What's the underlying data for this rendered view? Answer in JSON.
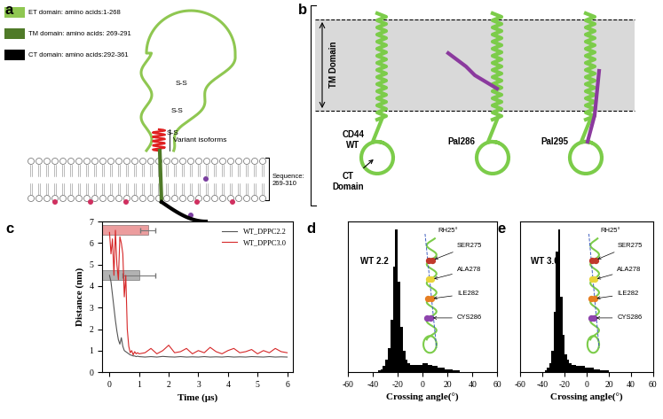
{
  "panel_labels": [
    "a",
    "b",
    "c",
    "d",
    "e"
  ],
  "diagram_a": {
    "legend": [
      {
        "label": "ET domain: amino acids:1-268",
        "color": "#8fc751"
      },
      {
        "label": "TM domain: amino acids: 269-291",
        "color": "#4f7a28"
      },
      {
        "label": "CT domain: amino acids:292-361",
        "color": "#000000"
      }
    ],
    "disulfide": [
      "S-S",
      "S-S",
      "S-S"
    ],
    "variant": "Variant isoforms",
    "sequence": "Sequence:\n269-310"
  },
  "diagram_b": {
    "region": "TM Domain",
    "variants": [
      "CD44\nWT",
      "Pal286",
      "Pal295"
    ],
    "ct_label": "CT\nDomain"
  },
  "chart_data": [
    {
      "type": "line",
      "xlabel": "Time (μs)",
      "ylabel": "Distance (nm)",
      "xlim": [
        -0.25,
        6.2
      ],
      "xticks": [
        0,
        1,
        2,
        3,
        4,
        5,
        6
      ],
      "ylim": [
        0,
        7
      ],
      "yticks": [
        0,
        1,
        2,
        3,
        4,
        5,
        6,
        7
      ],
      "legend": "upper right",
      "x": [
        0,
        0.05,
        0.1,
        0.15,
        0.2,
        0.25,
        0.3,
        0.35,
        0.4,
        0.45,
        0.5,
        0.55,
        0.6,
        0.65,
        0.7,
        0.75,
        0.8,
        0.85,
        0.9,
        0.95,
        1.0,
        1.2,
        1.4,
        1.6,
        1.8,
        2.0,
        2.2,
        2.4,
        2.6,
        2.8,
        3.0,
        3.2,
        3.4,
        3.6,
        3.8,
        4.0,
        4.2,
        4.4,
        4.6,
        4.8,
        5.0,
        5.2,
        5.4,
        5.6,
        5.8,
        6.0
      ],
      "series": [
        {
          "name": "WT_DPPC2.2",
          "color": "#555555",
          "values": [
            4.5,
            4.2,
            3.6,
            3.0,
            2.4,
            1.9,
            1.5,
            1.3,
            1.6,
            1.2,
            1.0,
            0.95,
            0.9,
            0.85,
            0.8,
            0.78,
            0.75,
            0.75,
            0.72,
            0.74,
            0.72,
            0.7,
            0.72,
            0.7,
            0.73,
            0.71,
            0.7,
            0.72,
            0.7,
            0.71,
            0.7,
            0.72,
            0.7,
            0.71,
            0.7,
            0.72,
            0.7,
            0.71,
            0.7,
            0.72,
            0.71,
            0.7,
            0.72,
            0.7,
            0.71,
            0.7
          ],
          "bar_value": 1.0,
          "bar_error": 0.55,
          "bar_y": 4.5
        },
        {
          "name": "WT_DPPC3.0",
          "color": "#d62728",
          "values": [
            6.5,
            5.5,
            6.2,
            4.5,
            6.6,
            5.0,
            4.3,
            6.3,
            6.0,
            5.5,
            3.5,
            4.5,
            2.0,
            1.2,
            0.9,
            1.0,
            0.8,
            0.95,
            0.85,
            0.9,
            0.85,
            0.9,
            1.1,
            0.85,
            1.0,
            1.25,
            0.9,
            0.95,
            1.1,
            0.85,
            1.0,
            0.9,
            1.15,
            0.95,
            0.85,
            1.0,
            1.1,
            0.9,
            0.95,
            1.05,
            0.85,
            1.0,
            0.9,
            1.1,
            0.95,
            0.9
          ],
          "bar_value": 1.3,
          "bar_error": 0.25,
          "bar_y": 6.6
        }
      ]
    },
    {
      "type": "histogram",
      "xlabel": "Crossing angle(°)",
      "xlim": [
        -60,
        60
      ],
      "xticks": [
        -60,
        -40,
        -20,
        0,
        20,
        40,
        60
      ],
      "ylim": [
        0,
        100
      ],
      "tick_labels": "x",
      "color": "#000000",
      "bins": [
        -40,
        -38,
        -36,
        -34,
        -32,
        -30,
        -28,
        -26,
        -24,
        -22,
        -20,
        -18,
        -16,
        -14,
        -12,
        -10,
        -8,
        -6,
        -4,
        -2,
        0,
        2,
        4,
        6,
        8,
        10,
        12,
        14,
        16,
        18,
        20,
        22,
        24,
        26,
        28,
        30
      ],
      "values": [
        0,
        0,
        1,
        2,
        4,
        8,
        16,
        35,
        70,
        95,
        60,
        30,
        14,
        8,
        6,
        5,
        5,
        5,
        5,
        5,
        6,
        6,
        5,
        5,
        4,
        4,
        3,
        3,
        3,
        2,
        2,
        2,
        1,
        1,
        1
      ],
      "label": "WT 2.2",
      "angle_label": "RH25°",
      "residues": [
        "SER275",
        "ALA278",
        "ILE282",
        "CYS286"
      ],
      "colors": [
        "#c0392b",
        "#e8d33a",
        "#e67e22",
        "#8e44ad"
      ]
    },
    {
      "type": "histogram",
      "xlabel": "Crossing angle(°)",
      "xlim": [
        -60,
        60
      ],
      "xticks": [
        -60,
        -40,
        -20,
        0,
        20,
        40,
        60
      ],
      "ylim": [
        0,
        100
      ],
      "tick_labels": "x",
      "color": "#000000",
      "bins": [
        -40,
        -38,
        -36,
        -34,
        -32,
        -30,
        -28,
        -26,
        -24,
        -22,
        -20,
        -18,
        -16,
        -14,
        -12,
        -10,
        -8,
        -6,
        -4,
        -2,
        0,
        2,
        4,
        6,
        8,
        10,
        12,
        14,
        16,
        18,
        20,
        22,
        24,
        26,
        28,
        30
      ],
      "values": [
        0,
        1,
        3,
        6,
        14,
        40,
        80,
        95,
        50,
        25,
        12,
        8,
        6,
        5,
        5,
        4,
        4,
        4,
        4,
        3,
        3,
        3,
        3,
        2,
        2,
        2,
        1,
        1,
        1,
        1,
        0,
        0,
        0,
        0,
        0
      ],
      "label": "WT 3.0",
      "angle_label": "RH25°",
      "residues": [
        "SER275",
        "ALA278",
        "ILE282",
        "CYS286"
      ],
      "colors": [
        "#c0392b",
        "#e8d33a",
        "#e67e22",
        "#8e44ad"
      ]
    }
  ]
}
